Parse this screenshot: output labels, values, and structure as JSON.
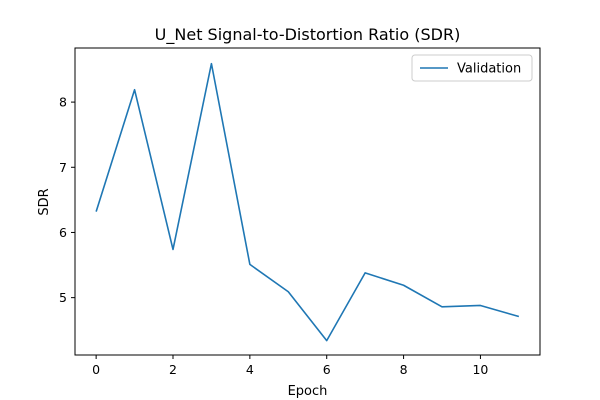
{
  "chart_data": {
    "type": "line",
    "title": "U_Net Signal-to-Distortion Ratio (SDR)",
    "xlabel": "Epoch",
    "ylabel": "SDR",
    "xlim": [
      -0.55,
      11.55
    ],
    "ylim": [
      4.12,
      8.83
    ],
    "xticks": [
      0,
      2,
      4,
      6,
      8,
      10
    ],
    "yticks": [
      5,
      6,
      7,
      8
    ],
    "grid": false,
    "legend_position": "upper right",
    "series": [
      {
        "name": "Validation",
        "color": "#1f77b4",
        "x": [
          0,
          1,
          2,
          3,
          4,
          5,
          6,
          7,
          8,
          9,
          10,
          11
        ],
        "y": [
          6.32,
          8.19,
          5.74,
          8.59,
          5.51,
          5.09,
          4.34,
          5.38,
          5.19,
          4.86,
          4.88,
          4.71
        ]
      }
    ]
  }
}
